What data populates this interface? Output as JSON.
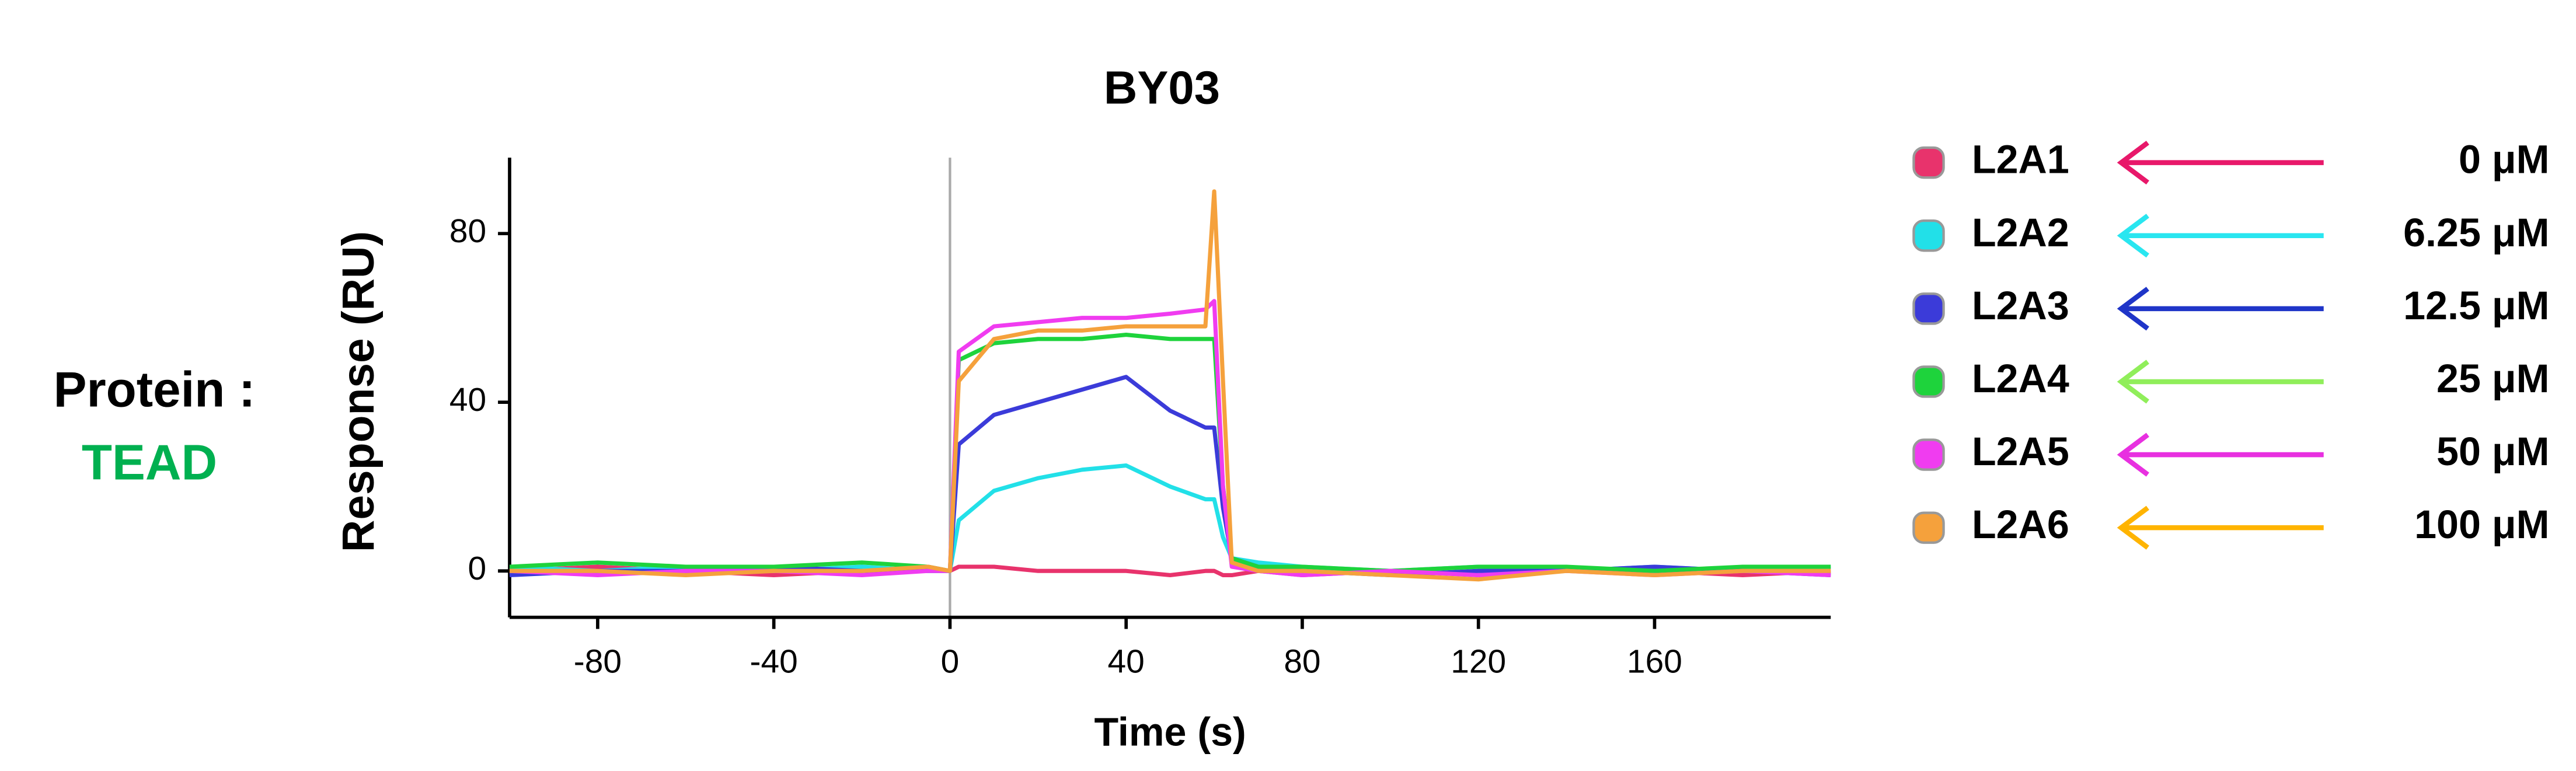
{
  "chart_data": {
    "type": "line",
    "title": "BY03",
    "xlabel": "Time (s)",
    "ylabel": "Response (RU)",
    "side_label": "Protein :",
    "side_label_value": "TEAD",
    "x": [
      -100,
      -80,
      -60,
      -40,
      -20,
      -5,
      0,
      2,
      10,
      20,
      30,
      40,
      50,
      58,
      60,
      62,
      64,
      70,
      80,
      100,
      120,
      140,
      160,
      180,
      200
    ],
    "series": [
      {
        "name": "L2A1",
        "color": "#e8336c",
        "arrow_color": "#e8186a",
        "concentration": "0 μM",
        "values": [
          0,
          1,
          0,
          -1,
          0,
          1,
          0,
          1,
          1,
          0,
          0,
          0,
          -1,
          0,
          0,
          -1,
          -1,
          0,
          -1,
          0,
          -1,
          0,
          0,
          -1,
          0
        ]
      },
      {
        "name": "L2A2",
        "color": "#22e0e8",
        "arrow_color": "#29e6f0",
        "concentration": "6.25 μM",
        "values": [
          1,
          0,
          1,
          0,
          1,
          0,
          0,
          12,
          19,
          22,
          24,
          25,
          20,
          17,
          17,
          8,
          3,
          2,
          1,
          0,
          1,
          0,
          1,
          0,
          1
        ]
      },
      {
        "name": "L2A3",
        "color": "#3b3bd9",
        "arrow_color": "#1f35c8",
        "concentration": "12.5 μM",
        "values": [
          -1,
          0,
          0,
          1,
          0,
          0,
          0,
          30,
          37,
          40,
          43,
          46,
          38,
          34,
          34,
          15,
          3,
          1,
          0,
          -1,
          0,
          0,
          1,
          0,
          -1
        ]
      },
      {
        "name": "L2A4",
        "color": "#1ed33c",
        "arrow_color": "#90ee5a",
        "concentration": "25 μM",
        "values": [
          1,
          2,
          1,
          1,
          2,
          1,
          0,
          50,
          54,
          55,
          55,
          56,
          55,
          55,
          55,
          20,
          3,
          1,
          1,
          0,
          1,
          1,
          0,
          1,
          1
        ]
      },
      {
        "name": "L2A5",
        "color": "#f03cf0",
        "arrow_color": "#e830e0",
        "concentration": "50 μM",
        "values": [
          0,
          -1,
          0,
          0,
          -1,
          0,
          0,
          52,
          58,
          59,
          60,
          60,
          61,
          62,
          64,
          20,
          1,
          0,
          -1,
          0,
          -1,
          0,
          -1,
          0,
          -1
        ]
      },
      {
        "name": "L2A6",
        "color": "#f5a13c",
        "arrow_color": "#ffb400",
        "concentration": "100 μM",
        "values": [
          0,
          0,
          -1,
          0,
          0,
          1,
          0,
          45,
          55,
          57,
          57,
          58,
          58,
          58,
          90,
          45,
          2,
          0,
          0,
          -1,
          -2,
          0,
          -1,
          0,
          0
        ]
      }
    ],
    "xlim": [
      -100,
      200
    ],
    "ylim": [
      -11,
      98
    ],
    "xticks": [
      -80,
      -40,
      0,
      40,
      80,
      120,
      160
    ],
    "yticks": [
      0,
      40,
      80
    ],
    "reference_line_x": 0
  }
}
